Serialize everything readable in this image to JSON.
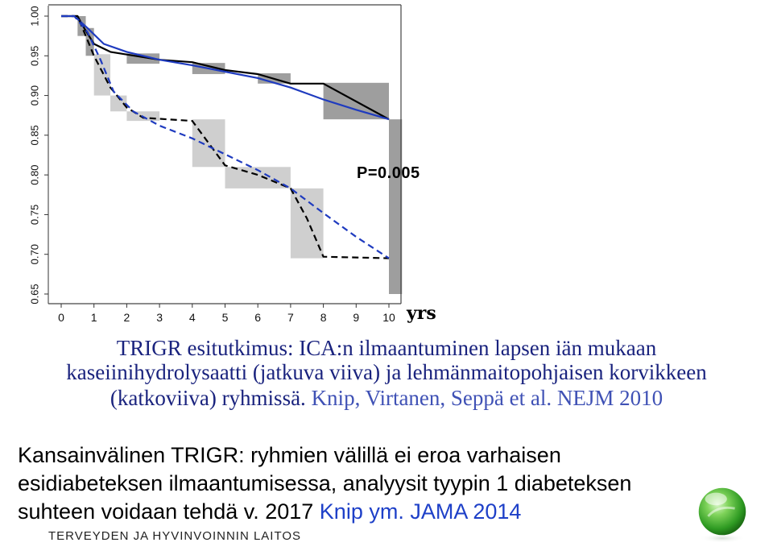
{
  "chart_data": {
    "type": "line",
    "p_value": "P=0.005",
    "x_unit": "yrs",
    "xlim": [
      0,
      10
    ],
    "ylim": [
      0.65,
      1.0
    ],
    "x_ticks": [
      "0",
      "1",
      "2",
      "3",
      "4",
      "5",
      "6",
      "7",
      "8",
      "9",
      "10"
    ],
    "y_ticks": [
      "0.65",
      "0.70",
      "0.75",
      "0.80",
      "0.85",
      "0.90",
      "0.95",
      "1.00"
    ],
    "grid": false,
    "series": [
      {
        "style": "solid-step",
        "color": "#000000",
        "points": [
          [
            0,
            1.0
          ],
          [
            0.5,
            1.0
          ],
          [
            0.7,
            0.985
          ],
          [
            1.0,
            0.965
          ],
          [
            1.5,
            0.955
          ],
          [
            3.0,
            0.945
          ],
          [
            4.0,
            0.942
          ],
          [
            5.0,
            0.932
          ],
          [
            6.0,
            0.927
          ],
          [
            7.0,
            0.915
          ],
          [
            8.0,
            0.915
          ],
          [
            10.0,
            0.87
          ]
        ]
      },
      {
        "style": "solid-smooth",
        "color": "#1f3bbf",
        "points": [
          [
            0,
            1.0
          ],
          [
            0.4,
            1.0
          ],
          [
            0.8,
            0.985
          ],
          [
            1.3,
            0.965
          ],
          [
            2.0,
            0.955
          ],
          [
            3.0,
            0.945
          ],
          [
            4.0,
            0.938
          ],
          [
            5.0,
            0.93
          ],
          [
            6.0,
            0.922
          ],
          [
            7.0,
            0.91
          ],
          [
            8.0,
            0.895
          ],
          [
            9.0,
            0.882
          ],
          [
            10.0,
            0.87
          ]
        ]
      },
      {
        "style": "dashed-step",
        "color": "#000000",
        "points": [
          [
            0,
            1.0
          ],
          [
            0.5,
            1.0
          ],
          [
            0.8,
            0.97
          ],
          [
            1.0,
            0.95
          ],
          [
            1.5,
            0.91
          ],
          [
            2.0,
            0.885
          ],
          [
            2.5,
            0.872
          ],
          [
            4.0,
            0.868
          ],
          [
            5.0,
            0.812
          ],
          [
            6.0,
            0.8
          ],
          [
            7.0,
            0.783
          ],
          [
            7.5,
            0.745
          ],
          [
            8.0,
            0.697
          ],
          [
            10.0,
            0.695
          ]
        ]
      },
      {
        "style": "dashed-smooth",
        "color": "#1f3bbf",
        "points": [
          [
            0,
            1.0
          ],
          [
            0.4,
            1.0
          ],
          [
            0.8,
            0.98
          ],
          [
            1.2,
            0.945
          ],
          [
            1.6,
            0.905
          ],
          [
            2.2,
            0.88
          ],
          [
            3.0,
            0.862
          ],
          [
            4.0,
            0.846
          ],
          [
            5.0,
            0.826
          ],
          [
            6.0,
            0.806
          ],
          [
            7.0,
            0.783
          ],
          [
            8.0,
            0.752
          ],
          [
            9.0,
            0.722
          ],
          [
            10.0,
            0.695
          ]
        ]
      }
    ],
    "bands": [
      {
        "tone": "dark",
        "x": [
          0.5,
          0.75
        ],
        "y": [
          0.975,
          1.0
        ]
      },
      {
        "tone": "dark",
        "x": [
          0.75,
          1.0
        ],
        "y": [
          0.95,
          0.985
        ]
      },
      {
        "tone": "dark",
        "x": [
          2.0,
          3.0
        ],
        "y": [
          0.94,
          0.953
        ]
      },
      {
        "tone": "dark",
        "x": [
          4.0,
          5.0
        ],
        "y": [
          0.927,
          0.941
        ]
      },
      {
        "tone": "dark",
        "x": [
          6.0,
          7.0
        ],
        "y": [
          0.915,
          0.928
        ]
      },
      {
        "tone": "dark",
        "x": [
          8.0,
          10.0
        ],
        "y": [
          0.87,
          0.916
        ]
      },
      {
        "tone": "dark",
        "x": [
          10.0,
          10.4
        ],
        "y": [
          0.65,
          0.87
        ]
      },
      {
        "tone": "light",
        "x": [
          1.0,
          1.5
        ],
        "y": [
          0.9,
          0.952
        ]
      },
      {
        "tone": "light",
        "x": [
          1.5,
          2.0
        ],
        "y": [
          0.88,
          0.9
        ]
      },
      {
        "tone": "light",
        "x": [
          2.0,
          3.0
        ],
        "y": [
          0.868,
          0.88
        ]
      },
      {
        "tone": "light",
        "x": [
          4.0,
          5.0
        ],
        "y": [
          0.81,
          0.87
        ]
      },
      {
        "tone": "light",
        "x": [
          5.0,
          7.0
        ],
        "y": [
          0.783,
          0.81
        ]
      },
      {
        "tone": "light",
        "x": [
          7.0,
          8.0
        ],
        "y": [
          0.695,
          0.783
        ]
      }
    ]
  },
  "caption": {
    "line1": "TRIGR esitutkimus: ICA:n ilmaantuminen lapsen iän mukaan",
    "line2": "kaseiinihydrolysaatti  (jatkuva viiva) ja lehmänmaitopohjaisen korvikkeen",
    "line3_main": "(katkoviiva) ryhmissä. ",
    "line3_ref": "Knip, Virtanen, Seppä et al. NEJM 2010"
  },
  "body": {
    "line1": "Kansainvälinen TRIGR: ryhmien välillä ei eroa varhaisen",
    "line2": "esidiabeteksen ilmaantumisessa, analyysit tyypin 1 diabeteksen",
    "line3_main": "suhteen voidaan tehdä v. 2017 ",
    "line3_ref": "Knip ym. JAMA 2014"
  },
  "footer": {
    "organization": "TERVEYDEN JA HYVINVOINNIN LAITOS"
  },
  "colors": {
    "band_dark": "#9e9e9e",
    "band_light": "#cfcfcf",
    "caption_text": "#1a237e",
    "ref_text": "#3f51b5",
    "logo_green": "#3cae2f"
  },
  "icons": {
    "logo": "green-sphere-logo-icon"
  }
}
